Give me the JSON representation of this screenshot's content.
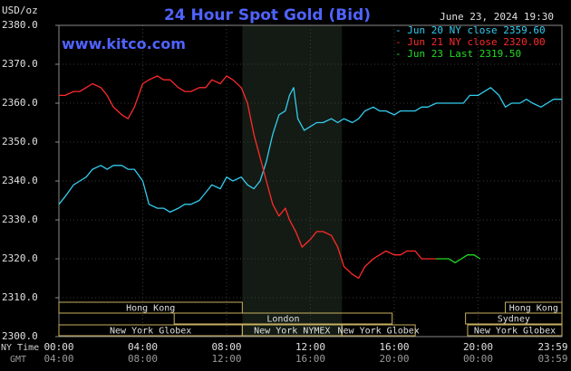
{
  "header": {
    "title": "24 Hour Spot Gold (Bid)",
    "unit": "USD/oz",
    "timestamp": "June 23, 2024 19:30",
    "site": "www.kitco.com"
  },
  "legend": [
    {
      "text": "- Jun 20 NY close 2359.60",
      "color": "#33ccee"
    },
    {
      "text": "- Jun 21 NY close 2320.00",
      "color": "#ff2a2a"
    },
    {
      "text": "- Jun 23 Last 2319.50",
      "color": "#22dd22"
    }
  ],
  "sessions": {
    "row1": [
      {
        "label": "Hong Kong",
        "start": 0.0,
        "end": 8.75
      },
      {
        "label": "Hong Kong",
        "start": 21.3,
        "end": 24.0
      }
    ],
    "row2": [
      {
        "label": "London",
        "start": 5.5,
        "end": 15.9
      },
      {
        "label": "Sydney",
        "start": 19.4,
        "end": 24.0
      }
    ],
    "row3": [
      {
        "label": "New York Globex",
        "start": 0.0,
        "end": 8.75
      },
      {
        "label": "New York NYMEX",
        "start": 8.75,
        "end": 13.5
      },
      {
        "label": "New York Globex",
        "start": 13.5,
        "end": 17.0
      },
      {
        "label": "New York Globex",
        "start": 19.5,
        "end": 24.0
      }
    ]
  },
  "footer": {
    "ny_label": "NY Time",
    "gmt_label": "GMT",
    "ny_ticks": [
      "00:00",
      "04:00",
      "08:00",
      "12:00",
      "16:00",
      "20:00",
      "23:59"
    ],
    "gmt_ticks": [
      "04:00",
      "08:00",
      "12:00",
      "16:00",
      "20:00",
      "00:00",
      "03:59"
    ]
  },
  "chart_data": {
    "type": "line",
    "title": "24 Hour Spot Gold (Bid)",
    "ylabel": "USD/oz",
    "ylim": [
      2300,
      2380
    ],
    "yticks": [
      "2300.0",
      "2310.0",
      "2320.0",
      "2330.0",
      "2340.0",
      "2350.0",
      "2360.0",
      "2370.0",
      "2380.0"
    ],
    "xlim": [
      0,
      24
    ],
    "grid": true,
    "legend_position": "top-right",
    "shaded_region": {
      "start": 8.75,
      "end": 13.5
    },
    "series": [
      {
        "name": "Jun 20 NY close 2359.60",
        "color": "#33ccee",
        "x": [
          0.0,
          0.3,
          0.7,
          1.0,
          1.3,
          1.6,
          2.0,
          2.3,
          2.6,
          3.0,
          3.3,
          3.6,
          4.0,
          4.3,
          4.7,
          5.0,
          5.3,
          5.7,
          6.0,
          6.3,
          6.7,
          7.0,
          7.3,
          7.7,
          8.0,
          8.3,
          8.7,
          9.0,
          9.3,
          9.6,
          9.9,
          10.2,
          10.5,
          10.8,
          11.0,
          11.2,
          11.4,
          11.7,
          12.0,
          12.3,
          12.6,
          13.0,
          13.3,
          13.6,
          14.0,
          14.3,
          14.6,
          15.0,
          15.3,
          15.6,
          16.0,
          16.3,
          16.6,
          17.0,
          17.3,
          17.6,
          18.0,
          18.3,
          18.6,
          19.0,
          19.3,
          19.6,
          20.0,
          20.3,
          20.6,
          21.0,
          21.3,
          21.6,
          22.0,
          22.3,
          22.6,
          23.0,
          23.3,
          23.6,
          24.0
        ],
        "y": [
          2334,
          2336,
          2339,
          2340,
          2341,
          2343,
          2344,
          2343,
          2344,
          2344,
          2343,
          2343,
          2340,
          2334,
          2333,
          2333,
          2332,
          2333,
          2334,
          2334,
          2335,
          2337,
          2339,
          2338,
          2341,
          2340,
          2341,
          2339,
          2338,
          2340,
          2345,
          2352,
          2357,
          2358,
          2362,
          2364,
          2356,
          2353,
          2354,
          2355,
          2355,
          2356,
          2355,
          2356,
          2355,
          2356,
          2358,
          2359,
          2358,
          2358,
          2357,
          2358,
          2358,
          2358,
          2359,
          2359,
          2360,
          2360,
          2360,
          2360,
          2360,
          2362,
          2362,
          2363,
          2364,
          2362,
          2359,
          2360,
          2360,
          2361,
          2360,
          2359,
          2360,
          2361,
          2361
        ]
      },
      {
        "name": "Jun 21 NY close 2320.00",
        "color": "#ff2a2a",
        "x": [
          0.0,
          0.3,
          0.7,
          1.0,
          1.3,
          1.6,
          2.0,
          2.3,
          2.6,
          3.0,
          3.3,
          3.6,
          4.0,
          4.3,
          4.7,
          5.0,
          5.3,
          5.7,
          6.0,
          6.3,
          6.7,
          7.0,
          7.3,
          7.7,
          8.0,
          8.3,
          8.7,
          9.0,
          9.3,
          9.6,
          9.9,
          10.2,
          10.5,
          10.8,
          11.0,
          11.3,
          11.6,
          12.0,
          12.3,
          12.6,
          13.0,
          13.3,
          13.6,
          14.0,
          14.3,
          14.6,
          15.0,
          15.3,
          15.6,
          16.0,
          16.3,
          16.6,
          17.0,
          17.3,
          17.6,
          18.0
        ],
        "y": [
          2362,
          2362,
          2363,
          2363,
          2364,
          2365,
          2364,
          2362,
          2359,
          2357,
          2356,
          2359,
          2365,
          2366,
          2367,
          2366,
          2366,
          2364,
          2363,
          2363,
          2364,
          2364,
          2366,
          2365,
          2367,
          2366,
          2364,
          2360,
          2352,
          2346,
          2340,
          2334,
          2331,
          2333,
          2330,
          2327,
          2323,
          2325,
          2327,
          2327,
          2326,
          2323,
          2318,
          2316,
          2315,
          2318,
          2320,
          2321,
          2322,
          2321,
          2321,
          2322,
          2322,
          2320,
          2320,
          2320
        ]
      },
      {
        "name": "Jun 23 Last 2319.50",
        "color": "#22dd22",
        "x": [
          18.0,
          18.3,
          18.6,
          18.9,
          19.2,
          19.5,
          19.8,
          20.1
        ],
        "y": [
          2320,
          2320,
          2320,
          2319,
          2320,
          2321,
          2321,
          2320
        ]
      }
    ]
  }
}
